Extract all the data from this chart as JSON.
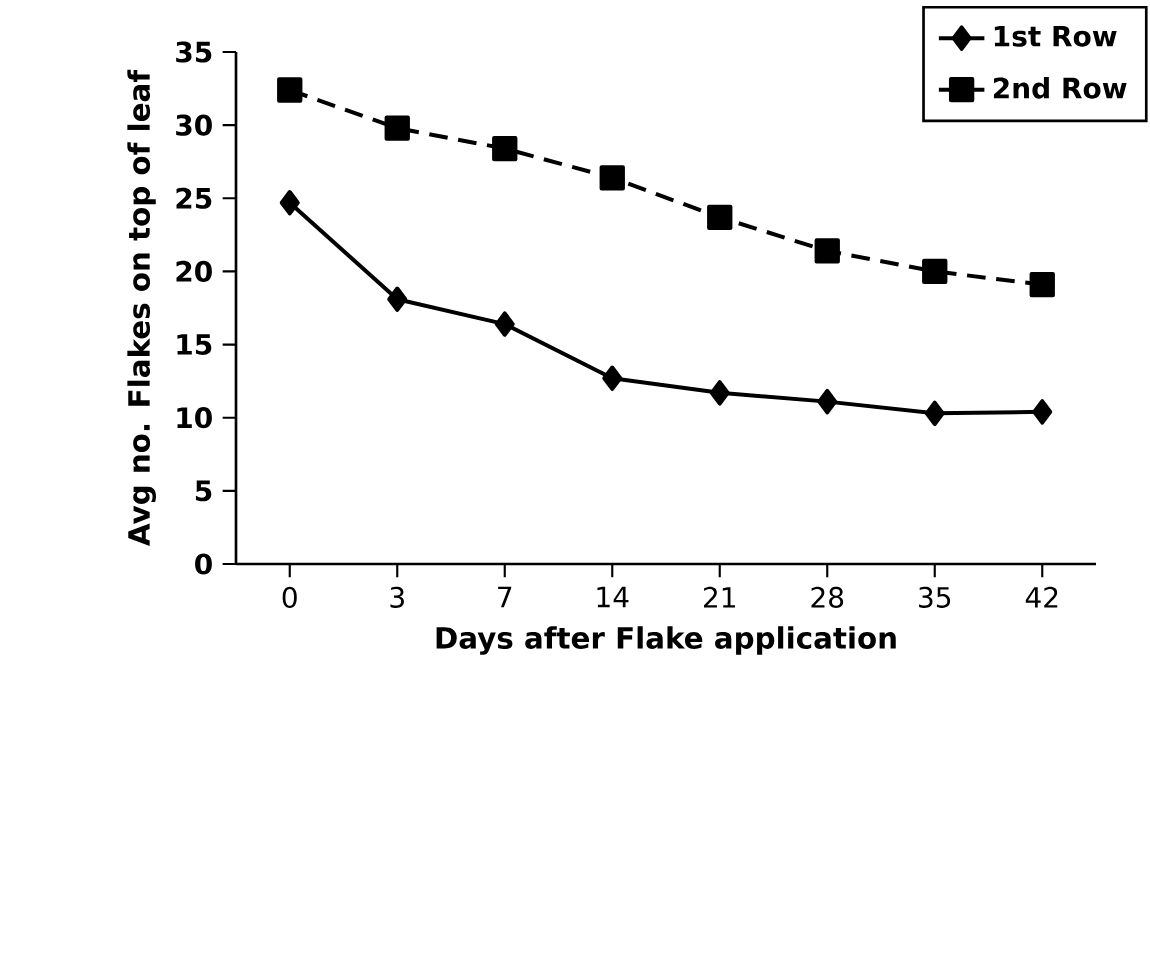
{
  "chart_data": {
    "type": "line",
    "xlabel": "Days after Flake application",
    "ylabel": "Avg no. Flakes on top of leaf",
    "categories": [
      "0",
      "3",
      "7",
      "14",
      "21",
      "28",
      "35",
      "42"
    ],
    "series": [
      {
        "name": "1st Row",
        "color": "#000000",
        "marker": "diamond",
        "line_style": "solid",
        "values": [
          24.7,
          18.1,
          16.4,
          12.7,
          11.7,
          11.1,
          10.3,
          10.4
        ]
      },
      {
        "name": "2nd Row",
        "color": "#000000",
        "marker": "square",
        "line_style": "dashed",
        "values": [
          32.4,
          29.8,
          28.4,
          26.4,
          23.7,
          21.4,
          20.0,
          19.1
        ]
      }
    ],
    "ylim": [
      0,
      35
    ],
    "yticks": [
      0,
      5,
      10,
      15,
      20,
      25,
      30,
      35
    ],
    "grid": false,
    "legend": "top right"
  }
}
